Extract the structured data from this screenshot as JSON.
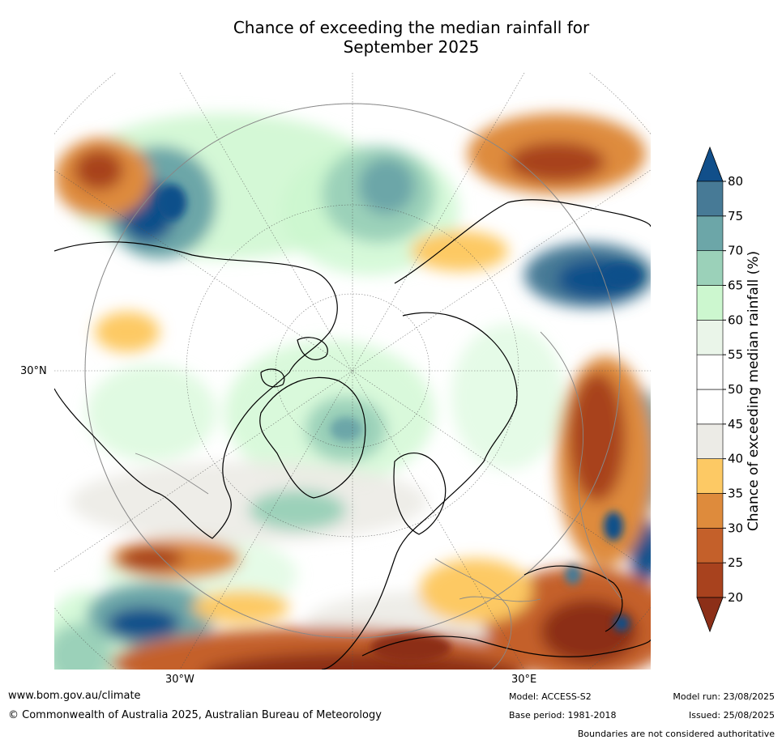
{
  "title": {
    "line1": "Chance of exceeding the median rainfall for",
    "line2": "September 2025"
  },
  "map": {
    "lon_labels": [
      "30°W",
      "30°E"
    ],
    "lat_labels": [
      "30°N"
    ]
  },
  "colorbar": {
    "title": "Chance of exceeding median rainfall (%)",
    "ticks": [
      "20",
      "25",
      "30",
      "35",
      "40",
      "45",
      "50",
      "55",
      "60",
      "65",
      "70",
      "75",
      "80"
    ],
    "bins": [
      {
        "range": "<20",
        "color": "#8c2f18"
      },
      {
        "range": "20-25",
        "color": "#a8421e"
      },
      {
        "range": "25-30",
        "color": "#c4602a"
      },
      {
        "range": "30-35",
        "color": "#de8b3c"
      },
      {
        "range": "35-40",
        "color": "#fdc964"
      },
      {
        "range": "40-45",
        "color": "#ecebe6"
      },
      {
        "range": "45-50",
        "color": "#ffffff"
      },
      {
        "range": "50-55",
        "color": "#ffffff"
      },
      {
        "range": "55-60",
        "color": "#eaf5e9"
      },
      {
        "range": "60-65",
        "color": "#ccf7cf"
      },
      {
        "range": "65-70",
        "color": "#9bd1b9"
      },
      {
        "range": "70-75",
        "color": "#6ca6a8"
      },
      {
        "range": "75-80",
        "color": "#477a96"
      },
      {
        "range": ">80",
        "color": "#114f8a"
      }
    ]
  },
  "footer": {
    "website": "www.bom.gov.au/climate",
    "copyright": "© Commonwealth of Australia 2025, Australian Bureau of Meteorology",
    "model": "Model: ACCESS-S2",
    "base_period": "Base period: 1981-2018",
    "model_run": "Model run: 23/08/2025",
    "issued": "Issued: 25/08/2025",
    "disclaimer": "Boundaries are not considered authoritative"
  }
}
